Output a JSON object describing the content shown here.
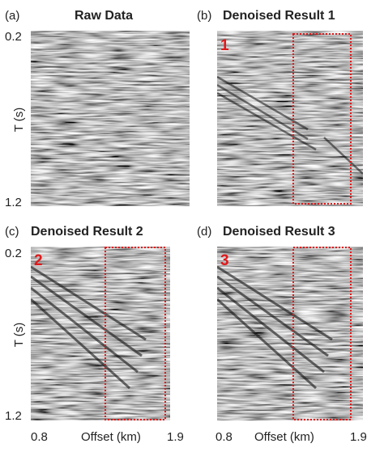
{
  "panels": [
    {
      "tag": "(a)",
      "title": "Raw Data"
    },
    {
      "tag": "(b)",
      "title": "Denoised Result 1",
      "marker": "1"
    },
    {
      "tag": "(c)",
      "title": "Denoised Result 2",
      "marker": "2"
    },
    {
      "tag": "(d)",
      "title": "Denoised Result 3",
      "marker": "3"
    }
  ],
  "y_axis": {
    "label": "T (s)",
    "ticks": [
      "0.2",
      "1.2"
    ]
  },
  "x_axis": {
    "label": "Offset (km)",
    "ticks": [
      "0.8",
      "1.9"
    ]
  }
}
